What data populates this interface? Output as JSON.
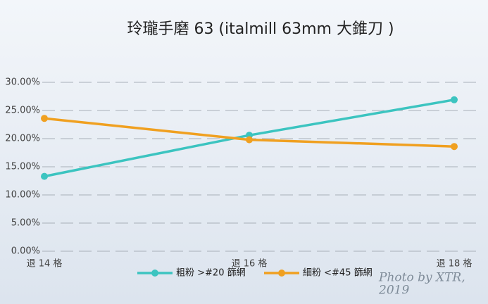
{
  "chart_data": {
    "type": "line",
    "title": "玲瓏手磨  63 (italmill  63mm 大錐刀 )",
    "categories": [
      "退 14 格",
      "退 16 格",
      "退 18 格"
    ],
    "series": [
      {
        "name": "粗粉 >#20 篩網",
        "color": "#3cc4c0",
        "values": [
          13.3,
          20.6,
          26.9
        ]
      },
      {
        "name": "細粉 <#45 篩網",
        "color": "#f0a020",
        "values": [
          23.6,
          19.8,
          18.6
        ]
      }
    ],
    "ylim": [
      0,
      30
    ],
    "yticks": [
      {
        "value": 0,
        "label": "0.00%"
      },
      {
        "value": 5,
        "label": "5.00%"
      },
      {
        "value": 10,
        "label": "10.00%"
      },
      {
        "value": 15,
        "label": "15.00%"
      },
      {
        "value": 20,
        "label": "20.00%"
      },
      {
        "value": 25,
        "label": "25.00%"
      },
      {
        "value": 30,
        "label": "30.00%"
      }
    ],
    "grid": true,
    "legend": "bottom",
    "watermark": [
      "Photo by XTR,",
      "2019"
    ]
  }
}
